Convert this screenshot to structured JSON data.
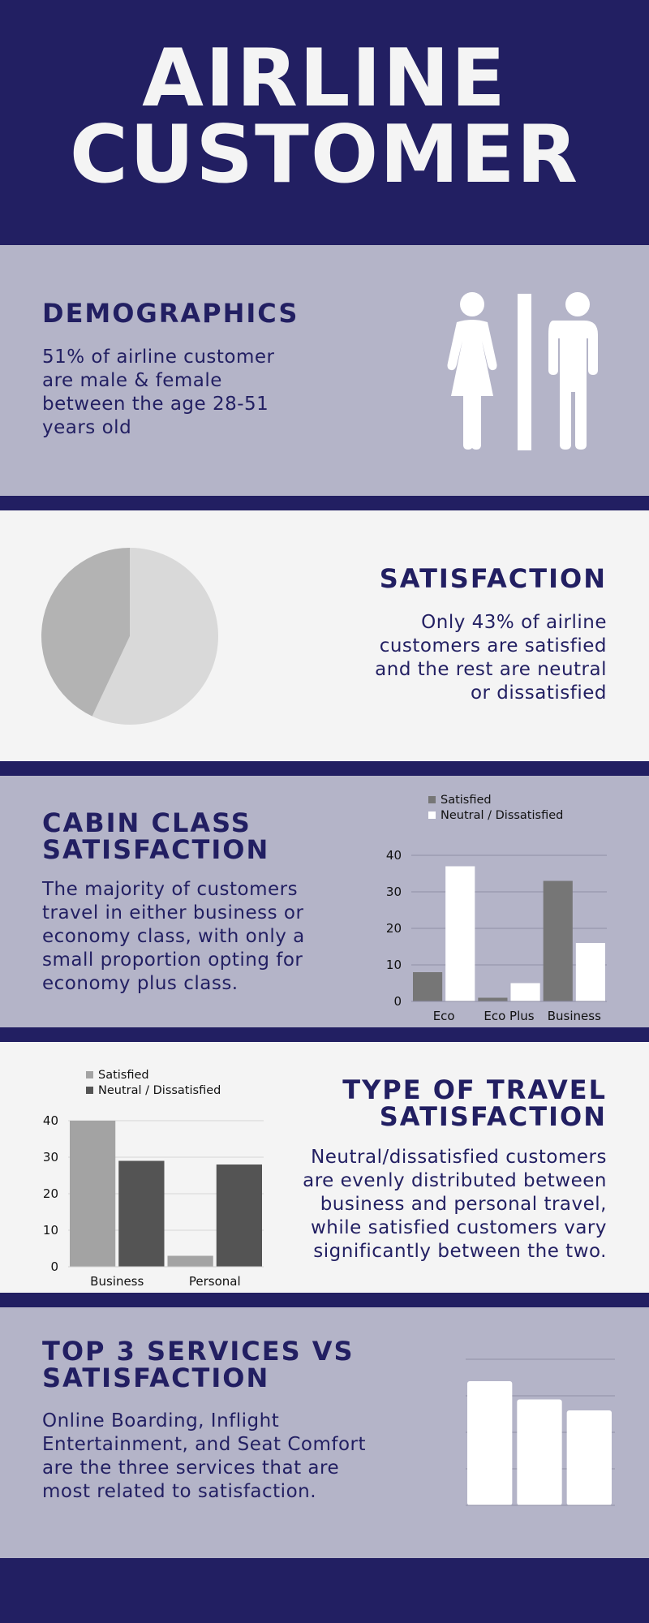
{
  "hero": {
    "line1": "AIRLINE",
    "line2": "CUSTOMER"
  },
  "demographics": {
    "title": "DEMOGRAPHICS",
    "text": "51% of airline customer are male & female between the age 28-51 years old",
    "icon": "restroom-female-male-icon"
  },
  "satisfaction": {
    "title": "SATISFACTION",
    "text": "Only 43% of airline customers are satisfied and the rest are neutral or dissatisfied"
  },
  "cabin": {
    "title_line1": "CABIN CLASS",
    "title_line2": "SATISFACTION",
    "text": "The majority of customers travel in either business or economy class, with only a small proportion opting for economy plus class."
  },
  "travel": {
    "title_line1": "TYPE OF TRAVEL",
    "title_line2": "SATISFACTION",
    "text": "Neutral/dissatisfied customers are evenly distributed between business and personal travel, while satisfied customers vary significantly between the two."
  },
  "top3": {
    "title_line1": "TOP 3 SERVICES VS",
    "title_line2": "SATISFACTION",
    "text": "Online Boarding, Inflight Entertainment, and Seat Comfort are the three services that are most related to satisfaction."
  },
  "colors": {
    "navy": "#221f62",
    "lavender": "#b4b4c8",
    "offwhite": "#f4f4f4",
    "pie_light": "#d9d9d9",
    "pie_dark": "#b3b3b3",
    "bar_gray": "#767676",
    "bar_white": "#ffffff",
    "bar_lightgray": "#a3a3a3",
    "bar_darkgray": "#545454"
  },
  "chart_data": [
    {
      "type": "pie",
      "slices": [
        {
          "label": "Neutral / Dissatisfied",
          "value": 57,
          "color": "#d9d9d9"
        },
        {
          "label": "Satisfied",
          "value": 43,
          "color": "#b3b3b3"
        }
      ]
    },
    {
      "type": "bar",
      "categories": [
        "Eco",
        "Eco Plus",
        "Business"
      ],
      "series": [
        {
          "name": "Satisfied",
          "values": [
            8,
            1,
            33
          ],
          "color": "#767676"
        },
        {
          "name": "Neutral / Dissatisfied",
          "values": [
            37,
            5,
            16
          ],
          "color": "#ffffff"
        }
      ],
      "ylim": [
        0,
        40
      ],
      "yticks": [
        0,
        10,
        20,
        30,
        40
      ],
      "legend": "top",
      "grid": true
    },
    {
      "type": "bar",
      "categories": [
        "Business",
        "Personal"
      ],
      "series": [
        {
          "name": "Satisfied",
          "values": [
            40,
            3
          ],
          "color": "#a3a3a3"
        },
        {
          "name": "Neutral / Dissatisfied",
          "values": [
            29,
            28
          ],
          "color": "#545454"
        }
      ],
      "ylim": [
        0,
        40
      ],
      "yticks": [
        0,
        10,
        20,
        30,
        40
      ],
      "legend": "top",
      "grid": true
    },
    {
      "type": "bar",
      "categories": [
        "",
        "",
        ""
      ],
      "series": [
        {
          "values": [
            34,
            29,
            26
          ],
          "color": "#ffffff"
        }
      ],
      "ylim": [
        0,
        40
      ],
      "grid": true
    }
  ]
}
